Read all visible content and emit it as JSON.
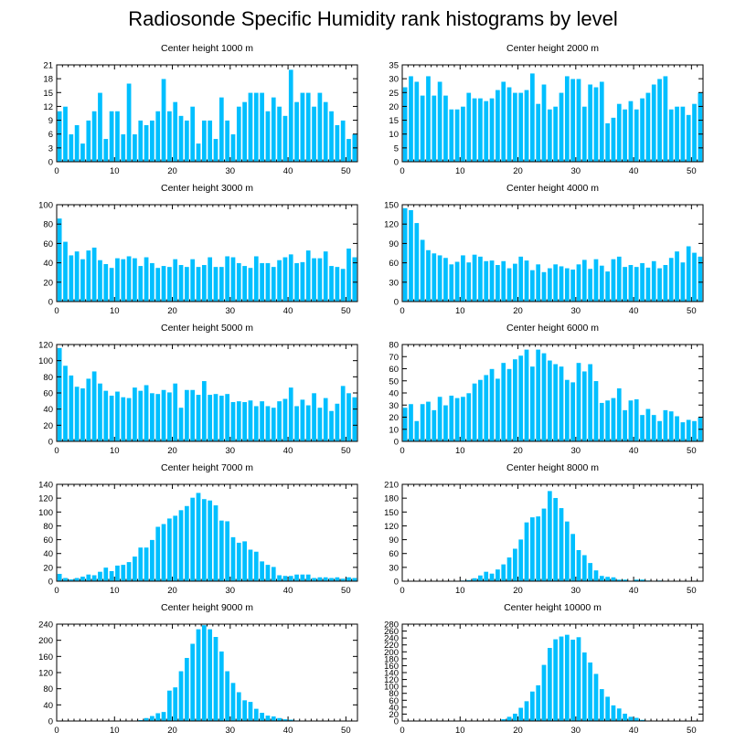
{
  "title": "Radiosonde Specific Humidity rank histograms by level",
  "style": {
    "bar_color": "#00BFFF",
    "bar_edge": "#FFFFFF",
    "axis_color": "#000000"
  },
  "chart_data": [
    {
      "type": "bar",
      "title": "Center height 1000 m",
      "x": [
        0,
        1,
        2,
        3,
        4,
        5,
        6,
        7,
        8,
        9,
        10,
        11,
        12,
        13,
        14,
        15,
        16,
        17,
        18,
        19,
        20,
        21,
        22,
        23,
        24,
        25,
        26,
        27,
        28,
        29,
        30,
        31,
        32,
        33,
        34,
        35,
        36,
        37,
        38,
        39,
        40,
        41,
        42,
        43,
        44,
        45,
        46,
        47,
        48,
        49,
        50,
        51
      ],
      "values": [
        11,
        12,
        6,
        8,
        4,
        9,
        11,
        15,
        5,
        11,
        11,
        6,
        17,
        6,
        9,
        8,
        9,
        11,
        18,
        11,
        13,
        10,
        9,
        12,
        4,
        9,
        9,
        5,
        14,
        9,
        6,
        12,
        13,
        15,
        15,
        15,
        11,
        14,
        12,
        10,
        20,
        13,
        15,
        15,
        12,
        15,
        13,
        11,
        8,
        9,
        5,
        6
      ],
      "xlim": [
        0,
        52
      ],
      "ylim": [
        0,
        21
      ],
      "xticks": [
        0,
        10,
        20,
        30,
        40,
        50
      ],
      "yticks": [
        0,
        3,
        6,
        9,
        12,
        15,
        18,
        21
      ]
    },
    {
      "type": "bar",
      "title": "Center height 2000 m",
      "x": [
        0,
        1,
        2,
        3,
        4,
        5,
        6,
        7,
        8,
        9,
        10,
        11,
        12,
        13,
        14,
        15,
        16,
        17,
        18,
        19,
        20,
        21,
        22,
        23,
        24,
        25,
        26,
        27,
        28,
        29,
        30,
        31,
        32,
        33,
        34,
        35,
        36,
        37,
        38,
        39,
        40,
        41,
        42,
        43,
        44,
        45,
        46,
        47,
        48,
        49,
        50,
        51
      ],
      "values": [
        27,
        31,
        29,
        24,
        31,
        24,
        29,
        24,
        19,
        19,
        20,
        25,
        23,
        23,
        22,
        23,
        26,
        29,
        27,
        25,
        25,
        26,
        32,
        21,
        28,
        19,
        20,
        25,
        31,
        30,
        30,
        20,
        28,
        27,
        29,
        14,
        16,
        21,
        19,
        22,
        19,
        23,
        25,
        28,
        30,
        31,
        19,
        20,
        20,
        17,
        21,
        25
      ],
      "xlim": [
        0,
        52
      ],
      "ylim": [
        0,
        35
      ],
      "xticks": [
        0,
        10,
        20,
        30,
        40,
        50
      ],
      "yticks": [
        0,
        5,
        10,
        15,
        20,
        25,
        30,
        35
      ]
    },
    {
      "type": "bar",
      "title": "Center height 3000 m",
      "x": [
        0,
        1,
        2,
        3,
        4,
        5,
        6,
        7,
        8,
        9,
        10,
        11,
        12,
        13,
        14,
        15,
        16,
        17,
        18,
        19,
        20,
        21,
        22,
        23,
        24,
        25,
        26,
        27,
        28,
        29,
        30,
        31,
        32,
        33,
        34,
        35,
        36,
        37,
        38,
        39,
        40,
        41,
        42,
        43,
        44,
        45,
        46,
        47,
        48,
        49,
        50,
        51
      ],
      "values": [
        86,
        62,
        48,
        52,
        44,
        53,
        56,
        43,
        39,
        35,
        45,
        44,
        47,
        45,
        37,
        46,
        40,
        35,
        37,
        36,
        44,
        38,
        36,
        44,
        36,
        38,
        46,
        36,
        36,
        47,
        46,
        40,
        37,
        35,
        47,
        40,
        40,
        36,
        43,
        46,
        49,
        40,
        41,
        53,
        45,
        45,
        52,
        37,
        36,
        34,
        55,
        46
      ],
      "xlim": [
        0,
        52
      ],
      "ylim": [
        0,
        100
      ],
      "xticks": [
        0,
        10,
        20,
        30,
        40,
        50
      ],
      "yticks": [
        0,
        20,
        40,
        60,
        80,
        100
      ]
    },
    {
      "type": "bar",
      "title": "Center height 4000 m",
      "x": [
        0,
        1,
        2,
        3,
        4,
        5,
        6,
        7,
        8,
        9,
        10,
        11,
        12,
        13,
        14,
        15,
        16,
        17,
        18,
        19,
        20,
        21,
        22,
        23,
        24,
        25,
        26,
        27,
        28,
        29,
        30,
        31,
        32,
        33,
        34,
        35,
        36,
        37,
        38,
        39,
        40,
        41,
        42,
        43,
        44,
        45,
        46,
        47,
        48,
        49,
        50,
        51
      ],
      "values": [
        145,
        142,
        122,
        96,
        80,
        75,
        72,
        68,
        58,
        62,
        72,
        61,
        73,
        70,
        63,
        64,
        57,
        63,
        52,
        59,
        70,
        64,
        49,
        58,
        46,
        52,
        58,
        55,
        52,
        50,
        58,
        65,
        51,
        66,
        56,
        47,
        66,
        70,
        54,
        57,
        54,
        60,
        53,
        63,
        52,
        57,
        68,
        78,
        61,
        86,
        76,
        70
      ],
      "xlim": [
        0,
        52
      ],
      "ylim": [
        0,
        150
      ],
      "xticks": [
        0,
        10,
        20,
        30,
        40,
        50
      ],
      "yticks": [
        0,
        30,
        60,
        90,
        120,
        150
      ]
    },
    {
      "type": "bar",
      "title": "Center height 5000 m",
      "x": [
        0,
        1,
        2,
        3,
        4,
        5,
        6,
        7,
        8,
        9,
        10,
        11,
        12,
        13,
        14,
        15,
        16,
        17,
        18,
        19,
        20,
        21,
        22,
        23,
        24,
        25,
        26,
        27,
        28,
        29,
        30,
        31,
        32,
        33,
        34,
        35,
        36,
        37,
        38,
        39,
        40,
        41,
        42,
        43,
        44,
        45,
        46,
        47,
        48,
        49,
        50,
        51
      ],
      "values": [
        116,
        94,
        82,
        68,
        66,
        78,
        87,
        72,
        63,
        57,
        62,
        55,
        54,
        67,
        63,
        70,
        60,
        59,
        64,
        61,
        72,
        42,
        64,
        64,
        58,
        75,
        58,
        59,
        57,
        59,
        49,
        50,
        49,
        51,
        44,
        50,
        44,
        42,
        50,
        53,
        67,
        44,
        52,
        45,
        60,
        42,
        54,
        38,
        47,
        69,
        60,
        55
      ],
      "xlim": [
        0,
        52
      ],
      "ylim": [
        0,
        120
      ],
      "xticks": [
        0,
        10,
        20,
        30,
        40,
        50
      ],
      "yticks": [
        0,
        20,
        40,
        60,
        80,
        100,
        120
      ]
    },
    {
      "type": "bar",
      "title": "Center height 6000 m",
      "x": [
        0,
        1,
        2,
        3,
        4,
        5,
        6,
        7,
        8,
        9,
        10,
        11,
        12,
        13,
        14,
        15,
        16,
        17,
        18,
        19,
        20,
        21,
        22,
        23,
        24,
        25,
        26,
        27,
        28,
        29,
        30,
        31,
        32,
        33,
        34,
        35,
        36,
        37,
        38,
        39,
        40,
        41,
        42,
        43,
        44,
        45,
        46,
        47,
        48,
        49,
        50,
        51
      ],
      "values": [
        28,
        31,
        17,
        31,
        33,
        26,
        37,
        30,
        38,
        36,
        37,
        40,
        48,
        51,
        55,
        60,
        52,
        65,
        60,
        68,
        71,
        76,
        62,
        76,
        73,
        67,
        64,
        62,
        51,
        49,
        65,
        58,
        64,
        50,
        32,
        34,
        36,
        44,
        26,
        34,
        35,
        22,
        27,
        22,
        17,
        26,
        25,
        21,
        16,
        18,
        17,
        20
      ],
      "xlim": [
        0,
        52
      ],
      "ylim": [
        0,
        80
      ],
      "xticks": [
        0,
        10,
        20,
        30,
        40,
        50
      ],
      "yticks": [
        0,
        10,
        20,
        30,
        40,
        50,
        60,
        70,
        80
      ]
    },
    {
      "type": "bar",
      "title": "Center height 7000 m",
      "x": [
        0,
        1,
        2,
        3,
        4,
        5,
        6,
        7,
        8,
        9,
        10,
        11,
        12,
        13,
        14,
        15,
        16,
        17,
        18,
        19,
        20,
        21,
        22,
        23,
        24,
        25,
        26,
        27,
        28,
        29,
        30,
        31,
        32,
        33,
        34,
        35,
        36,
        37,
        38,
        39,
        40,
        41,
        42,
        43,
        44,
        45,
        46,
        47,
        48,
        49,
        50,
        51
      ],
      "values": [
        11,
        5,
        3,
        5,
        7,
        10,
        9,
        14,
        20,
        15,
        23,
        24,
        28,
        36,
        49,
        49,
        60,
        79,
        83,
        91,
        95,
        103,
        109,
        121,
        128,
        119,
        117,
        110,
        88,
        87,
        64,
        56,
        58,
        46,
        43,
        29,
        24,
        21,
        9,
        8,
        8,
        10,
        10,
        10,
        5,
        6,
        6,
        5,
        6,
        4,
        6,
        5
      ],
      "xlim": [
        0,
        52
      ],
      "ylim": [
        0,
        140
      ],
      "xticks": [
        0,
        10,
        20,
        30,
        40,
        50
      ],
      "yticks": [
        0,
        20,
        40,
        60,
        80,
        100,
        120,
        140
      ]
    },
    {
      "type": "bar",
      "title": "Center height 8000 m",
      "x": [
        0,
        1,
        2,
        3,
        4,
        5,
        6,
        7,
        8,
        9,
        10,
        11,
        12,
        13,
        14,
        15,
        16,
        17,
        18,
        19,
        20,
        21,
        22,
        23,
        24,
        25,
        26,
        27,
        28,
        29,
        30,
        31,
        32,
        33,
        34,
        35,
        36,
        37,
        38,
        39,
        40,
        41,
        42,
        43,
        44,
        45,
        46,
        47,
        48,
        49,
        50,
        51
      ],
      "values": [
        0,
        0,
        0,
        0,
        0,
        0,
        0,
        0,
        0,
        1,
        2,
        3,
        7,
        13,
        21,
        17,
        26,
        37,
        52,
        71,
        91,
        128,
        139,
        141,
        158,
        196,
        181,
        159,
        130,
        103,
        68,
        57,
        40,
        24,
        12,
        10,
        9,
        4,
        4,
        1,
        4,
        4,
        2,
        1,
        2,
        0,
        0,
        0,
        0,
        0,
        0,
        0
      ],
      "xlim": [
        0,
        52
      ],
      "ylim": [
        0,
        210
      ],
      "xticks": [
        0,
        10,
        20,
        30,
        40,
        50
      ],
      "yticks": [
        0,
        30,
        60,
        90,
        120,
        150,
        180,
        210
      ]
    },
    {
      "type": "bar",
      "title": "Center height 9000 m",
      "x": [
        0,
        1,
        2,
        3,
        4,
        5,
        6,
        7,
        8,
        9,
        10,
        11,
        12,
        13,
        14,
        15,
        16,
        17,
        18,
        19,
        20,
        21,
        22,
        23,
        24,
        25,
        26,
        27,
        28,
        29,
        30,
        31,
        32,
        33,
        34,
        35,
        36,
        37,
        38,
        39,
        40,
        41,
        42,
        43,
        44,
        45,
        46,
        47,
        48,
        49,
        50,
        51
      ],
      "values": [
        0,
        0,
        0,
        0,
        0,
        0,
        0,
        0,
        0,
        0,
        0,
        0,
        0,
        1,
        3,
        8,
        13,
        20,
        23,
        76,
        84,
        124,
        157,
        192,
        228,
        238,
        228,
        209,
        173,
        124,
        95,
        72,
        52,
        48,
        31,
        21,
        14,
        12,
        8,
        5,
        4,
        2,
        1,
        1,
        0,
        0,
        0,
        0,
        0,
        0,
        0,
        0
      ],
      "xlim": [
        0,
        52
      ],
      "ylim": [
        0,
        240
      ],
      "xticks": [
        0,
        10,
        20,
        30,
        40,
        50
      ],
      "yticks": [
        0,
        40,
        80,
        120,
        160,
        200,
        240
      ]
    },
    {
      "type": "bar",
      "title": "Center height 10000 m",
      "x": [
        0,
        1,
        2,
        3,
        4,
        5,
        6,
        7,
        8,
        9,
        10,
        11,
        12,
        13,
        14,
        15,
        16,
        17,
        18,
        19,
        20,
        21,
        22,
        23,
        24,
        25,
        26,
        27,
        28,
        29,
        30,
        31,
        32,
        33,
        34,
        35,
        36,
        37,
        38,
        39,
        40,
        41,
        42,
        43,
        44,
        45,
        46,
        47,
        48,
        49,
        50,
        51
      ],
      "values": [
        0,
        0,
        0,
        0,
        0,
        0,
        0,
        0,
        0,
        0,
        0,
        0,
        0,
        0,
        0,
        0,
        2,
        6,
        13,
        22,
        39,
        58,
        86,
        104,
        163,
        212,
        237,
        245,
        250,
        236,
        243,
        199,
        170,
        137,
        93,
        71,
        46,
        37,
        22,
        13,
        10,
        4,
        1,
        0,
        0,
        0,
        0,
        0,
        0,
        0,
        0,
        0
      ],
      "xlim": [
        0,
        52
      ],
      "ylim": [
        0,
        280
      ],
      "xticks": [
        0,
        10,
        20,
        30,
        40,
        50
      ],
      "yticks": [
        0,
        20,
        40,
        60,
        80,
        100,
        120,
        140,
        160,
        180,
        200,
        220,
        240,
        260,
        280
      ]
    }
  ]
}
